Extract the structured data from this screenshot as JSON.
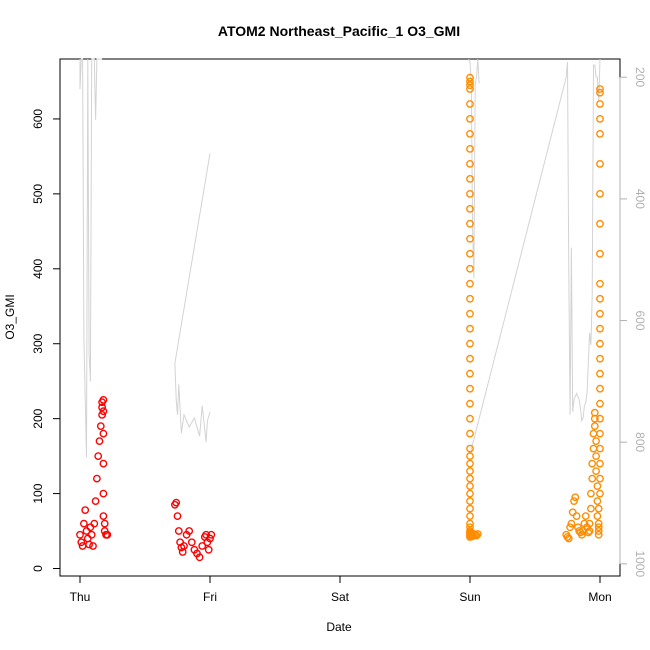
{
  "chart_data": {
    "type": "scatter",
    "title": "ATOM2 Northeast_Pacific_1 O3_GMI",
    "xlabel": "Date",
    "ylabel": "O3_GMI",
    "x_ticks": [
      "Thu",
      "Fri",
      "Sat",
      "Sun",
      "Mon"
    ],
    "y_ticks": [
      "0",
      "100",
      "200",
      "300",
      "400",
      "500",
      "600"
    ],
    "y2_ticks": [
      "200",
      "400",
      "600",
      "800",
      "1000"
    ],
    "ylim": [
      -10,
      680
    ],
    "y2lim": [
      1020,
      170
    ],
    "y2_reversed": true,
    "grid": false,
    "series": [
      {
        "color": "#ff0000",
        "marker": "circle-open",
        "values_x": [
          0.0,
          0.01,
          0.02,
          0.03,
          0.04,
          0.05,
          0.06,
          0.07,
          0.08,
          0.09,
          0.1,
          0.11,
          0.12,
          0.13,
          0.14,
          0.15,
          0.16,
          0.17,
          0.17,
          0.17,
          0.18,
          0.18,
          0.18,
          0.18,
          0.18,
          0.18,
          0.19,
          0.19,
          0.2,
          0.21,
          0.73,
          0.74,
          0.75,
          0.76,
          0.77,
          0.78,
          0.79,
          0.8,
          0.82,
          0.84,
          0.86,
          0.88,
          0.9,
          0.92,
          0.94,
          0.96,
          0.97,
          0.98,
          0.99,
          1.0,
          1.01
        ],
        "values_y": [
          45,
          35,
          30,
          60,
          78,
          50,
          40,
          32,
          55,
          45,
          30,
          60,
          90,
          120,
          150,
          170,
          190,
          205,
          215,
          222,
          225,
          210,
          180,
          140,
          100,
          70,
          60,
          50,
          45,
          45,
          85,
          88,
          70,
          50,
          35,
          28,
          22,
          30,
          45,
          50,
          35,
          25,
          20,
          15,
          30,
          42,
          45,
          35,
          25,
          40,
          45
        ]
      },
      {
        "color": "#ff8c00",
        "marker": "circle-open",
        "values_x": [
          3.0,
          3.0,
          3.0,
          3.0,
          3.0,
          3.0,
          3.0,
          3.0,
          3.0,
          3.0,
          3.0,
          3.0,
          3.0,
          3.0,
          3.0,
          3.0,
          3.0,
          3.0,
          3.0,
          3.0,
          3.0,
          3.0,
          3.0,
          3.0,
          3.0,
          3.0,
          3.0,
          3.0,
          3.0,
          3.0,
          3.0,
          3.0,
          3.0,
          3.0,
          3.0,
          3.0,
          3.0,
          3.0,
          3.0,
          3.0,
          3.0,
          3.0,
          3.0,
          3.0,
          3.01,
          3.01,
          3.02,
          3.02,
          3.03,
          3.04,
          3.05,
          3.06,
          3.74,
          3.75,
          3.76,
          3.77,
          3.78,
          3.79,
          3.8,
          3.81,
          3.82,
          3.83,
          3.84,
          3.85,
          3.86,
          3.87,
          3.88,
          3.89,
          3.9,
          3.91,
          3.92,
          3.92,
          3.93,
          3.93,
          3.94,
          3.94,
          3.95,
          3.95,
          3.96,
          3.96,
          3.96,
          3.97,
          3.97,
          3.97,
          3.98,
          3.98,
          3.98,
          3.99,
          3.99,
          3.99,
          3.99,
          3.99,
          4.0,
          4.0,
          4.0,
          4.0,
          4.0,
          4.0,
          4.0,
          4.0,
          4.0,
          4.0,
          4.0,
          4.0,
          4.0,
          4.0,
          4.0,
          4.0,
          4.0,
          4.0,
          4.0,
          4.0,
          4.0,
          4.0,
          4.0,
          4.0
        ],
        "values_y": [
          655,
          650,
          645,
          640,
          620,
          600,
          580,
          560,
          540,
          520,
          500,
          480,
          460,
          440,
          420,
          400,
          380,
          360,
          340,
          320,
          300,
          280,
          260,
          240,
          220,
          200,
          180,
          160,
          150,
          140,
          130,
          120,
          110,
          100,
          90,
          80,
          70,
          60,
          55,
          50,
          48,
          46,
          44,
          42,
          48,
          45,
          43,
          44,
          46,
          45,
          44,
          46,
          45,
          42,
          40,
          55,
          60,
          75,
          90,
          95,
          70,
          55,
          50,
          48,
          45,
          50,
          60,
          70,
          55,
          48,
          50,
          60,
          80,
          100,
          120,
          140,
          160,
          180,
          200,
          208,
          190,
          170,
          150,
          130,
          110,
          90,
          70,
          55,
          50,
          45,
          60,
          80,
          100,
          120,
          140,
          160,
          180,
          200,
          220,
          240,
          260,
          280,
          300,
          320,
          340,
          360,
          380,
          420,
          460,
          500,
          540,
          580,
          600,
          620,
          635,
          640
        ]
      }
    ],
    "background_line": {
      "color": "#d3d3d3",
      "axis": "right",
      "values_x": [
        0.0,
        0.0,
        0.01,
        0.02,
        0.03,
        0.05,
        0.06,
        0.07,
        0.08,
        0.09,
        0.11,
        0.12,
        0.13,
        0.14,
        0.15,
        0.17,
        1.0,
        0.73,
        0.74,
        0.75,
        0.76,
        0.78,
        0.8,
        0.84,
        0.88,
        0.92,
        0.94,
        0.95,
        0.96,
        0.97,
        0.98,
        1.0,
        2.99,
        3.0,
        3.01,
        3.02,
        3.03,
        3.04,
        3.05,
        3.06,
        3.07,
        3.0,
        3.74,
        3.75,
        3.76,
        3.77,
        3.78,
        3.79,
        3.8,
        3.82,
        3.84,
        3.85,
        3.86,
        3.87,
        3.88,
        3.89,
        3.9,
        3.92,
        3.93,
        3.94,
        3.95,
        3.96,
        3.97,
        3.98,
        3.99,
        4.0
      ],
      "values_y": [
        170,
        220,
        170,
        170,
        630,
        825,
        170,
        655,
        700,
        170,
        170,
        270,
        170,
        170,
        170,
        170,
        325,
        670,
        730,
        755,
        705,
        785,
        755,
        775,
        760,
        790,
        740,
        760,
        780,
        800,
        765,
        750,
        170,
        175,
        210,
        450,
        530,
        210,
        200,
        170,
        210,
        820,
        200,
        175,
        525,
        755,
        480,
        750,
        730,
        720,
        730,
        745,
        765,
        760,
        740,
        735,
        720,
        620,
        640,
        560,
        180,
        180,
        200,
        200,
        240,
        170
      ]
    }
  }
}
